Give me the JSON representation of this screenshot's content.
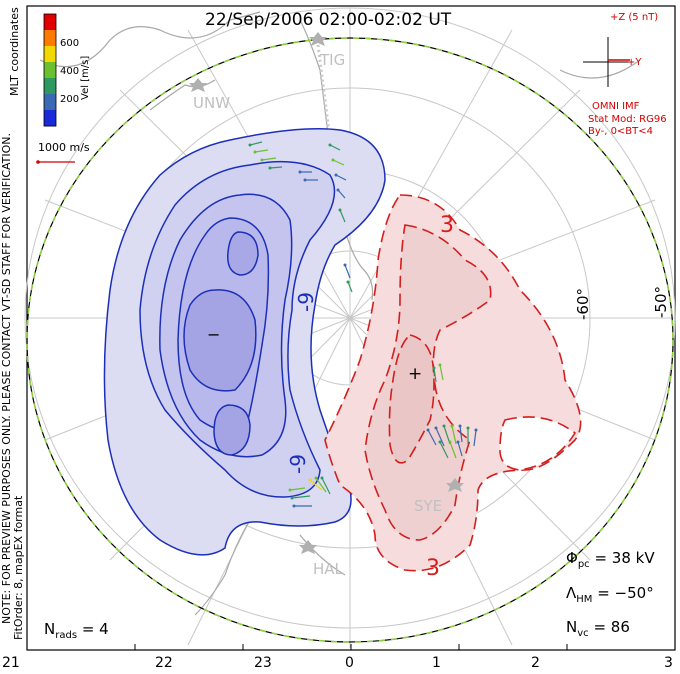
{
  "title": "22/Sep/2006 02:00-02:02 UT",
  "coordinates_label": "MLT coordinates",
  "colorbar": {
    "label": "Vel [m/s]",
    "ticks": [
      "600",
      "400",
      "200"
    ],
    "colors": [
      "#e00000",
      "#ff7a00",
      "#f0d800",
      "#6cc030",
      "#2e9a60",
      "#3a6ab4",
      "#1a2ad8"
    ]
  },
  "scale_vector_label": "1000 m/s",
  "imf": {
    "z_label": "+Z (5 nT)",
    "y_label": "+Y",
    "source": "OMNI IMF",
    "model_line1": "Stat Mod: RG96",
    "model_line2": "By-, 0<BT<4"
  },
  "notes": {
    "preview": "NOTE: FOR PREVIEW PURPOSES ONLY. PLEASE CONTACT VT-SD STAFF FOR VERIFICATION.",
    "fit": "FitOrder: 8, mapEX format"
  },
  "stations": [
    "TIG",
    "UNW",
    "SYE",
    "HAL"
  ],
  "latitude_labels": [
    "-60°",
    "-50°"
  ],
  "contour_labels": {
    "negative": [
      "-9",
      "-9"
    ],
    "positive": [
      "3",
      "3"
    ],
    "min_marker": "−",
    "max_marker": "+"
  },
  "stats": {
    "nrads_label": "N",
    "nrads_sub": "rads",
    "nrads_value": "= 4",
    "phi_label": "Φ",
    "phi_sub": "pc",
    "phi_value": "= 38 kV",
    "lambda_label": "Λ",
    "lambda_sub": "HM",
    "lambda_value": "= −50°",
    "nvc_label": "N",
    "nvc_sub": "vc",
    "nvc_value": "= 86"
  },
  "mlt_axis": [
    "21",
    "22",
    "23",
    "0",
    "1",
    "2",
    "3"
  ],
  "colors": {
    "negative_fill": "#dcdcf2",
    "negative_core": "#b4b4ea",
    "negative_line": "#1c2fb8",
    "positive_fill": "#f6dcdc",
    "positive_core": "#ecc4c4",
    "positive_line": "#d41e1e",
    "boundary": "#8cd040",
    "grid": "#c8c8c8",
    "coast": "#a8a8a8"
  }
}
